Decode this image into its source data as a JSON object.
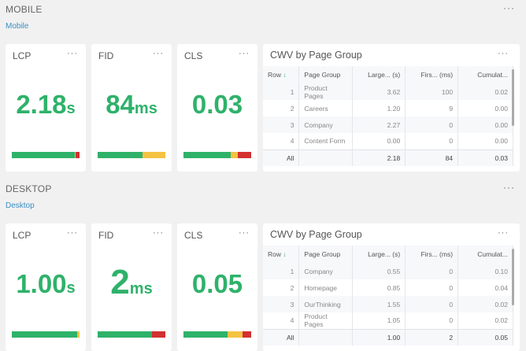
{
  "colors": {
    "good": "#2eb26a",
    "needs": "#f5c242",
    "poor": "#d33030",
    "link": "#3a8fc4"
  },
  "sections": [
    {
      "title": "MOBILE",
      "link": "Mobile",
      "kpis": [
        {
          "label": "LCP",
          "value": "2.18",
          "unit": "s",
          "dist": [
            93,
            1,
            6
          ]
        },
        {
          "label": "FID",
          "value": "84",
          "unit": "ms",
          "dist": [
            66,
            34,
            0
          ]
        },
        {
          "label": "CLS",
          "value": "0.03",
          "unit": "",
          "dist": [
            70,
            10,
            20
          ]
        }
      ],
      "table": {
        "title": "CWV by Page Group",
        "headers": [
          "Row",
          "Page Group",
          "Large... (s)",
          "Firs... (ms)",
          "Cumulat..."
        ],
        "rows": [
          [
            "1",
            "Product Pages",
            "3.62",
            "100",
            "0.02"
          ],
          [
            "2",
            "Careers",
            "1.20",
            "9",
            "0.00"
          ],
          [
            "3",
            "Company",
            "2.27",
            "0",
            "0.00"
          ],
          [
            "4",
            "Content Form",
            "0.00",
            "0",
            "0.00"
          ]
        ],
        "total": [
          "All",
          "",
          "2.18",
          "84",
          "0.03"
        ]
      }
    },
    {
      "title": "DESKTOP",
      "link": "Desktop",
      "kpis": [
        {
          "label": "LCP",
          "value": "1.00",
          "unit": "s",
          "dist": [
            97,
            3,
            0
          ]
        },
        {
          "label": "FID",
          "value": "2",
          "unit": "ms",
          "dist": [
            80,
            0,
            20
          ]
        },
        {
          "label": "CLS",
          "value": "0.05",
          "unit": "",
          "dist": [
            65,
            22,
            13
          ]
        }
      ],
      "table": {
        "title": "CWV by Page Group",
        "headers": [
          "Row",
          "Page Group",
          "Large... (s)",
          "Firs... (ms)",
          "Cumulat..."
        ],
        "rows": [
          [
            "1",
            "Company",
            "0.55",
            "0",
            "0.10"
          ],
          [
            "2",
            "Homepage",
            "0.85",
            "0",
            "0.04"
          ],
          [
            "3",
            "OurThinking",
            "1.55",
            "0",
            "0.02"
          ],
          [
            "4",
            "Product Pages",
            "1.05",
            "0",
            "0.02"
          ]
        ],
        "total": [
          "All",
          "",
          "1.00",
          "2",
          "0.05"
        ]
      }
    }
  ],
  "more_icon": "···",
  "sort_icon": "↓"
}
